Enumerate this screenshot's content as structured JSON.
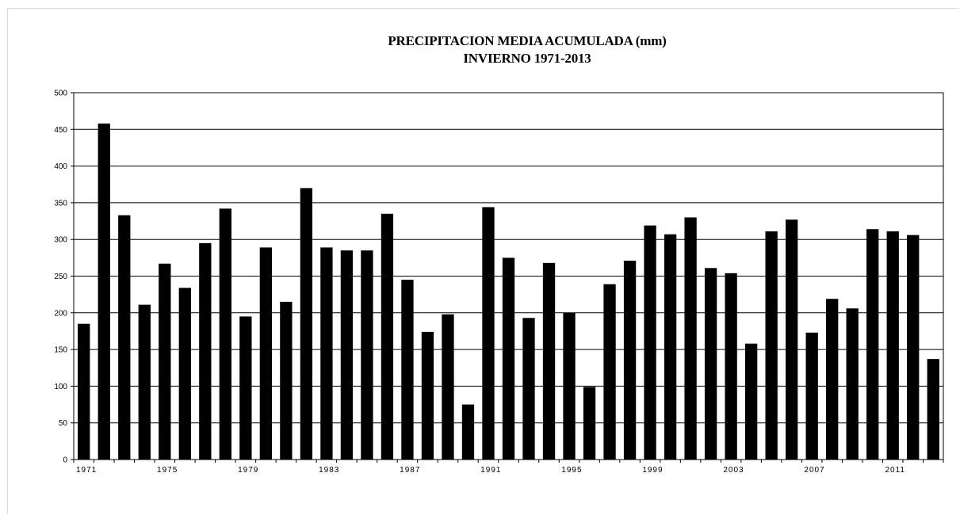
{
  "chart_data": {
    "type": "bar",
    "title": "PRECIPITACION MEDIA ACUMULADA (mm)",
    "subtitle": "INVIERNO 1971-2013",
    "xlabel": "",
    "ylabel": "",
    "ylim": [
      0,
      500
    ],
    "yticks": [
      0,
      50,
      100,
      150,
      200,
      250,
      300,
      350,
      400,
      450,
      500
    ],
    "xtick_labels": [
      "1971",
      "1975",
      "1979",
      "1983",
      "1987",
      "1991",
      "1995",
      "1999",
      "2003",
      "2007",
      "2011"
    ],
    "grid": "horizontal",
    "bar_color": "#000000",
    "categories": [
      "1971",
      "1972",
      "1973",
      "1974",
      "1975",
      "1976",
      "1977",
      "1978",
      "1979",
      "1980",
      "1981",
      "1982",
      "1983",
      "1984",
      "1985",
      "1986",
      "1987",
      "1988",
      "1989",
      "1990",
      "1991",
      "1992",
      "1993",
      "1994",
      "1995",
      "1996",
      "1997",
      "1998",
      "1999",
      "2000",
      "2001",
      "2002",
      "2003",
      "2004",
      "2005",
      "2006",
      "2007",
      "2008",
      "2009",
      "2010",
      "2011",
      "2012",
      "2013"
    ],
    "values": [
      185,
      458,
      333,
      211,
      267,
      234,
      295,
      342,
      195,
      289,
      215,
      370,
      289,
      285,
      285,
      335,
      245,
      174,
      198,
      75,
      344,
      275,
      193,
      268,
      200,
      99,
      239,
      271,
      319,
      307,
      330,
      261,
      254,
      158,
      311,
      327,
      173,
      219,
      206,
      314,
      311,
      306,
      137
    ]
  }
}
